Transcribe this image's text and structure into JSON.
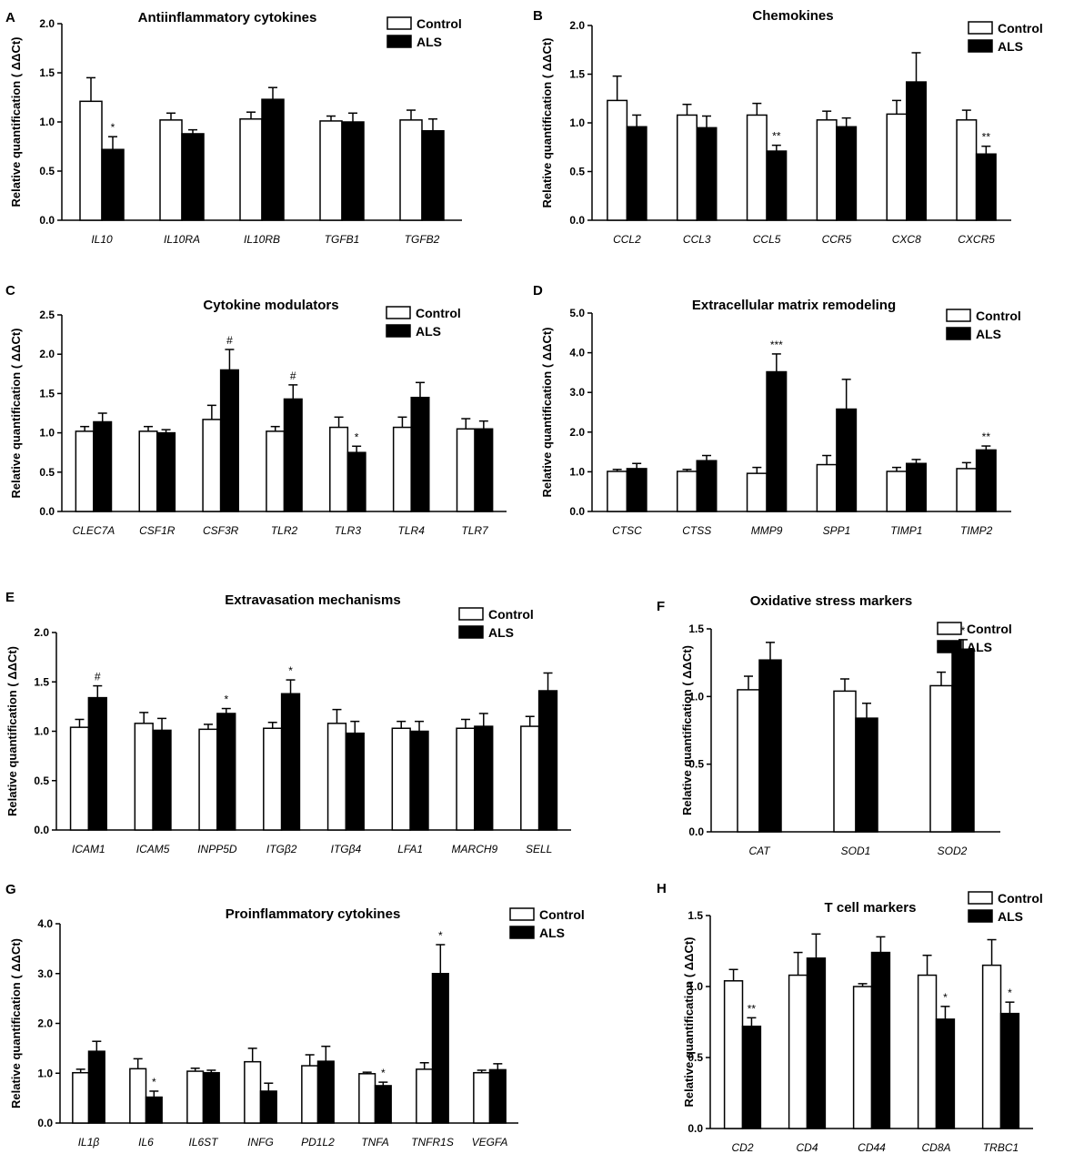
{
  "chart_data": [
    {
      "letter": "A",
      "type": "bar",
      "title": "Antiinflammatory cytokines",
      "ylabel": "Relative quantification ( ΔΔCt)",
      "ylim": [
        0,
        2.0
      ],
      "yticks": [
        "0.0",
        "0.5",
        "1.0",
        "1.5",
        "2.0"
      ],
      "categories": [
        "IL10",
        "IL10RA",
        "IL10RB",
        "TGFB1",
        "TGFB2"
      ],
      "legend": [
        "Control",
        "ALS"
      ],
      "series": [
        {
          "name": "Control",
          "values": [
            1.21,
            1.02,
            1.03,
            1.01,
            1.02
          ],
          "errors": [
            0.24,
            0.07,
            0.07,
            0.05,
            0.1
          ]
        },
        {
          "name": "ALS",
          "values": [
            0.72,
            0.88,
            1.23,
            1.0,
            0.91
          ],
          "errors": [
            0.13,
            0.04,
            0.12,
            0.09,
            0.12
          ]
        }
      ],
      "annotations": [
        {
          "index": 0,
          "series": "ALS",
          "text": "*"
        }
      ]
    },
    {
      "letter": "B",
      "type": "bar",
      "title": "Chemokines",
      "ylabel": "Relative quantification ( ΔΔCt)",
      "ylim": [
        0,
        2.0
      ],
      "yticks": [
        "0.0",
        "0.5",
        "1.0",
        "1.5",
        "2.0"
      ],
      "categories": [
        "CCL2",
        "CCL3",
        "CCL5",
        "CCR5",
        "CXC8",
        "CXCR5"
      ],
      "legend": [
        "Control",
        "ALS"
      ],
      "series": [
        {
          "name": "Control",
          "values": [
            1.23,
            1.08,
            1.08,
            1.03,
            1.09,
            1.03
          ],
          "errors": [
            0.25,
            0.11,
            0.12,
            0.09,
            0.14,
            0.1
          ]
        },
        {
          "name": "ALS",
          "values": [
            0.96,
            0.95,
            0.71,
            0.96,
            1.42,
            0.68
          ],
          "errors": [
            0.12,
            0.12,
            0.06,
            0.09,
            0.3,
            0.08
          ]
        }
      ],
      "annotations": [
        {
          "index": 2,
          "series": "ALS",
          "text": "**"
        },
        {
          "index": 5,
          "series": "ALS",
          "text": "**"
        }
      ]
    },
    {
      "letter": "C",
      "type": "bar",
      "title": "Cytokine  modulators",
      "ylabel": "Relative quantification ( ΔΔCt)",
      "ylim": [
        0,
        2.5
      ],
      "yticks": [
        "0.0",
        "0.5",
        "1.0",
        "1.5",
        "2.0",
        "2.5"
      ],
      "categories": [
        "CLEC7A",
        "CSF1R",
        "CSF3R",
        "TLR2",
        "TLR3",
        "TLR4",
        "TLR7"
      ],
      "legend": [
        "Control",
        "ALS"
      ],
      "series": [
        {
          "name": "Control",
          "values": [
            1.02,
            1.02,
            1.17,
            1.02,
            1.07,
            1.07,
            1.05
          ],
          "errors": [
            0.06,
            0.06,
            0.18,
            0.06,
            0.13,
            0.13,
            0.13
          ]
        },
        {
          "name": "ALS",
          "values": [
            1.14,
            1.0,
            1.8,
            1.43,
            0.75,
            1.45,
            1.05
          ],
          "errors": [
            0.11,
            0.04,
            0.26,
            0.18,
            0.08,
            0.19,
            0.1
          ]
        }
      ],
      "annotations": [
        {
          "index": 2,
          "series": "ALS",
          "text": "#"
        },
        {
          "index": 3,
          "series": "ALS",
          "text": "#"
        },
        {
          "index": 4,
          "series": "ALS",
          "text": "*"
        }
      ]
    },
    {
      "letter": "D",
      "type": "bar",
      "title": "Extracellular matrix remodeling",
      "ylabel": "Relative quantification ( ΔΔCt)",
      "ylim": [
        0,
        5.0
      ],
      "yticks": [
        "0.0",
        "1.0",
        "2.0",
        "3.0",
        "4.0",
        "5.0"
      ],
      "categories": [
        "CTSC",
        "CTSS",
        "MMP9",
        "SPP1",
        "TIMP1",
        "TIMP2"
      ],
      "legend": [
        "Control",
        "ALS"
      ],
      "series": [
        {
          "name": "Control",
          "values": [
            1.01,
            1.01,
            0.96,
            1.18,
            1.01,
            1.08
          ],
          "errors": [
            0.05,
            0.05,
            0.15,
            0.23,
            0.1,
            0.15
          ]
        },
        {
          "name": "ALS",
          "values": [
            1.08,
            1.28,
            3.52,
            2.58,
            1.21,
            1.55
          ],
          "errors": [
            0.13,
            0.13,
            0.45,
            0.75,
            0.1,
            0.1
          ]
        }
      ],
      "annotations": [
        {
          "index": 2,
          "series": "ALS",
          "text": "***"
        },
        {
          "index": 5,
          "series": "ALS",
          "text": "**"
        }
      ]
    },
    {
      "letter": "E",
      "type": "bar",
      "title": "Extravasation mechanisms",
      "ylabel": "Relative quantification ( ΔΔCt)",
      "ylim": [
        0,
        2.0
      ],
      "yticks": [
        "0.0",
        "0.5",
        "1.0",
        "1.5",
        "2.0"
      ],
      "categories": [
        "ICAM1",
        "ICAM5",
        "INPP5D",
        "ITGβ2",
        "ITGβ4",
        "LFA1",
        "MARCH9",
        "SELL"
      ],
      "legend": [
        "Control",
        "ALS"
      ],
      "series": [
        {
          "name": "Control",
          "values": [
            1.04,
            1.08,
            1.02,
            1.03,
            1.08,
            1.03,
            1.03,
            1.05
          ],
          "errors": [
            0.08,
            0.11,
            0.05,
            0.06,
            0.14,
            0.07,
            0.09,
            0.1
          ]
        },
        {
          "name": "ALS",
          "values": [
            1.34,
            1.01,
            1.18,
            1.38,
            0.98,
            1.0,
            1.05,
            1.41
          ],
          "errors": [
            0.12,
            0.12,
            0.05,
            0.14,
            0.12,
            0.1,
            0.13,
            0.18
          ]
        }
      ],
      "annotations": [
        {
          "index": 0,
          "series": "ALS",
          "text": "#"
        },
        {
          "index": 2,
          "series": "ALS",
          "text": "*"
        },
        {
          "index": 3,
          "series": "ALS",
          "text": "*"
        }
      ]
    },
    {
      "letter": "F",
      "type": "bar",
      "title": "Oxidative stress markers",
      "ylabel": "Relative quantification ( ΔΔCt)",
      "ylim": [
        0,
        1.5
      ],
      "yticks": [
        "0.0",
        "0.5",
        "1.0",
        "1.5"
      ],
      "categories": [
        "CAT",
        "SOD1",
        "SOD2"
      ],
      "legend": [
        "Control",
        "ALS"
      ],
      "series": [
        {
          "name": "Control",
          "values": [
            1.05,
            1.04,
            1.08
          ],
          "errors": [
            0.1,
            0.09,
            0.1
          ]
        },
        {
          "name": "ALS",
          "values": [
            1.27,
            0.84,
            1.35
          ],
          "errors": [
            0.13,
            0.11,
            0.07
          ]
        }
      ],
      "annotations": [
        {
          "index": 2,
          "series": "ALS",
          "text": "*"
        }
      ]
    },
    {
      "letter": "G",
      "type": "bar",
      "title": "Proinflammatory cytokines",
      "ylabel": "Relative quantification ( ΔΔCt)",
      "ylim": [
        0,
        4.0
      ],
      "yticks": [
        "0.0",
        "1.0",
        "2.0",
        "3.0",
        "4.0"
      ],
      "categories": [
        "IL1β",
        "IL6",
        "IL6ST",
        "INFG",
        "PD1L2",
        "TNFA",
        "TNFR1S",
        "VEGFA"
      ],
      "legend": [
        "Control",
        "ALS"
      ],
      "series": [
        {
          "name": "Control",
          "values": [
            1.01,
            1.09,
            1.04,
            1.23,
            1.15,
            0.99,
            1.08,
            1.01
          ],
          "errors": [
            0.07,
            0.2,
            0.06,
            0.27,
            0.22,
            0.03,
            0.13,
            0.05
          ]
        },
        {
          "name": "ALS",
          "values": [
            1.44,
            0.52,
            1.01,
            0.64,
            1.24,
            0.75,
            3.0,
            1.07
          ],
          "errors": [
            0.2,
            0.12,
            0.05,
            0.16,
            0.3,
            0.07,
            0.58,
            0.12
          ]
        }
      ],
      "annotations": [
        {
          "index": 1,
          "series": "ALS",
          "text": "*"
        },
        {
          "index": 5,
          "series": "ALS",
          "text": "*"
        },
        {
          "index": 6,
          "series": "ALS",
          "text": "*"
        }
      ]
    },
    {
      "letter": "H",
      "type": "bar",
      "title": "T cell markers",
      "ylabel": "Relative quantification ( ΔΔCt)",
      "ylim": [
        0,
        1.5
      ],
      "yticks": [
        "0.0",
        "0.5",
        "1.0",
        "1.5"
      ],
      "categories": [
        "CD2",
        "CD4",
        "CD44",
        "CD8A",
        "TRBC1"
      ],
      "legend": [
        "Control",
        "ALS"
      ],
      "series": [
        {
          "name": "Control",
          "values": [
            1.04,
            1.08,
            1.0,
            1.08,
            1.15
          ],
          "errors": [
            0.08,
            0.16,
            0.02,
            0.14,
            0.18
          ]
        },
        {
          "name": "ALS",
          "values": [
            0.72,
            1.2,
            1.24,
            0.77,
            0.81
          ],
          "errors": [
            0.06,
            0.17,
            0.11,
            0.09,
            0.08
          ]
        }
      ],
      "annotations": [
        {
          "index": 0,
          "series": "ALS",
          "text": "**"
        },
        {
          "index": 3,
          "series": "ALS",
          "text": "*"
        },
        {
          "index": 4,
          "series": "ALS",
          "text": "*"
        }
      ]
    }
  ]
}
